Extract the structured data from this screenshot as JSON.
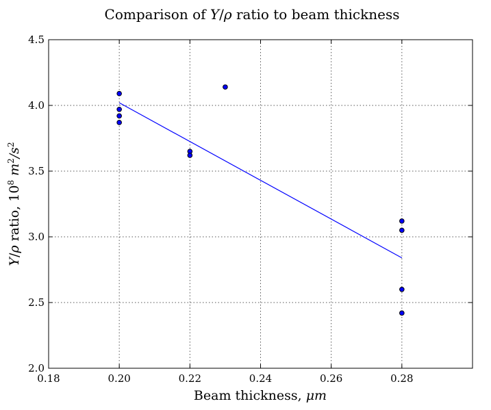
{
  "chart_data": {
    "type": "scatter",
    "title": {
      "prefix": "Comparison of ",
      "math_y": "Y",
      "math_sep": "/",
      "math_rho": "ρ",
      "suffix": " ratio to beam thickness"
    },
    "xlabel": {
      "text": "Beam thickness, ",
      "unit": "μm"
    },
    "ylabel": {
      "math_y": "Y",
      "math_sep": "/",
      "math_rho": "ρ",
      "text": " ratio, 10",
      "exp": "8",
      "unit_m": " m",
      "unit_m_exp": "2",
      "unit_sep": "/s",
      "unit_s_exp": "2"
    },
    "xlim": [
      0.18,
      0.3
    ],
    "ylim": [
      2.0,
      4.5
    ],
    "xticks": [
      0.18,
      0.2,
      0.22,
      0.24,
      0.26,
      0.28
    ],
    "xtick_labels": [
      "0.18",
      "0.20",
      "0.22",
      "0.24",
      "0.26",
      "0.28"
    ],
    "yticks": [
      2.0,
      2.5,
      3.0,
      3.5,
      4.0,
      4.5
    ],
    "ytick_labels": [
      "2.0",
      "2.5",
      "3.0",
      "3.5",
      "4.0",
      "4.5"
    ],
    "grid": true,
    "points": [
      {
        "x": 0.2,
        "y": 4.09
      },
      {
        "x": 0.2,
        "y": 3.97
      },
      {
        "x": 0.2,
        "y": 3.92
      },
      {
        "x": 0.2,
        "y": 3.87
      },
      {
        "x": 0.22,
        "y": 3.65
      },
      {
        "x": 0.22,
        "y": 3.62
      },
      {
        "x": 0.23,
        "y": 4.14
      },
      {
        "x": 0.28,
        "y": 3.12
      },
      {
        "x": 0.28,
        "y": 3.05
      },
      {
        "x": 0.28,
        "y": 2.6
      },
      {
        "x": 0.28,
        "y": 2.42
      }
    ],
    "fit_line": {
      "x": [
        0.2,
        0.28
      ],
      "y": [
        4.02,
        2.84
      ]
    },
    "colors": {
      "marker_fill": "#0000ff",
      "marker_edge": "#000000",
      "line": "#0000ff",
      "grid": "#555555"
    }
  }
}
